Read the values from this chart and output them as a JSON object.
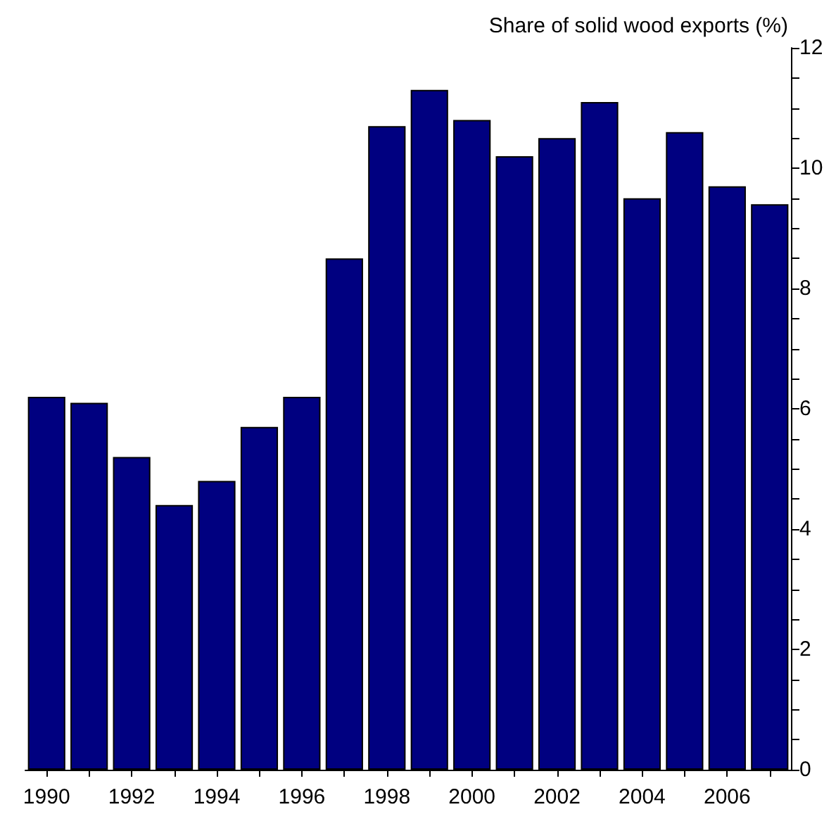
{
  "chart_data": {
    "type": "bar",
    "ylabel": "Share of solid wood exports (%)",
    "categories": [
      "1990",
      null,
      "1992",
      null,
      "1994",
      null,
      "1996",
      null,
      "1998",
      null,
      "2000",
      null,
      "2002",
      null,
      "2004",
      null,
      "2006",
      null
    ],
    "values": [
      6.2,
      6.1,
      5.2,
      4.4,
      4.8,
      5.7,
      6.2,
      8.5,
      10.7,
      11.3,
      10.8,
      10.2,
      10.5,
      11.1,
      9.5,
      10.6,
      9.7,
      9.4
    ],
    "color": "#000080",
    "ylim": [
      0,
      12
    ],
    "yticks": [
      0,
      {
        "value": 0.5,
        "label": null
      },
      {
        "value": 1,
        "label": null
      },
      {
        "value": 1.5,
        "label": null
      },
      2,
      {
        "value": 2.5,
        "label": null
      },
      {
        "value": 3,
        "label": null
      },
      {
        "value": 3.5,
        "label": null
      },
      4,
      {
        "value": 4.5,
        "label": null
      },
      {
        "value": 5,
        "label": null
      },
      {
        "value": 5.5,
        "label": null
      },
      6,
      {
        "value": 6.5,
        "label": null
      },
      {
        "value": 7,
        "label": null
      },
      {
        "value": 7.5,
        "label": null
      },
      8,
      {
        "value": 8.5,
        "label": null
      },
      {
        "value": 9,
        "label": null
      },
      {
        "value": 9.5,
        "label": null
      },
      10,
      {
        "value": 10.5,
        "label": null
      },
      {
        "value": 11,
        "label": null
      },
      {
        "value": 11.5,
        "label": null
      },
      12
    ],
    "grid": false
  }
}
